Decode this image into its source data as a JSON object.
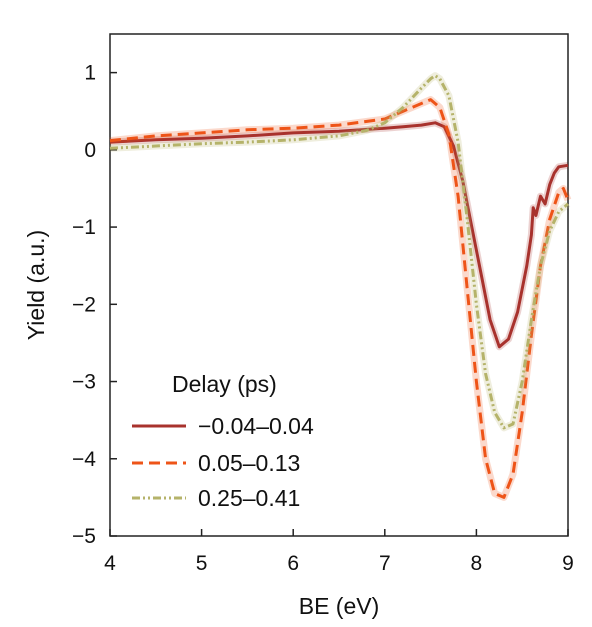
{
  "chart_data": {
    "type": "line",
    "title": "",
    "xlabel": "BE (eV)",
    "ylabel": "Yield (a.u.)",
    "xlim": [
      4,
      9
    ],
    "ylim": [
      -5,
      1.5
    ],
    "xticks": [
      "4",
      "5",
      "6",
      "7",
      "8",
      "9"
    ],
    "yticks": [
      "1",
      "0",
      "−1",
      "−2",
      "−3",
      "−4",
      "−5"
    ],
    "grid": false,
    "legend": {
      "title": "Delay (ps)",
      "placement": "bottom-left"
    },
    "series": [
      {
        "name": "−0.04–0.04",
        "color": "#a8322d",
        "style": "solid",
        "x": [
          4.0,
          4.5,
          5.0,
          5.5,
          6.0,
          6.5,
          7.0,
          7.2,
          7.4,
          7.55,
          7.65,
          7.75,
          7.85,
          7.95,
          8.05,
          8.15,
          8.25,
          8.35,
          8.45,
          8.55,
          8.6,
          8.62,
          8.65,
          8.7,
          8.75,
          8.8,
          8.85,
          8.9,
          9.0
        ],
        "y": [
          0.1,
          0.13,
          0.15,
          0.18,
          0.22,
          0.24,
          0.28,
          0.3,
          0.32,
          0.35,
          0.3,
          0.05,
          -0.4,
          -1.0,
          -1.6,
          -2.2,
          -2.55,
          -2.45,
          -2.1,
          -1.5,
          -1.1,
          -0.75,
          -0.85,
          -0.6,
          -0.7,
          -0.45,
          -0.3,
          -0.22,
          -0.2
        ]
      },
      {
        "name": "0.05–0.13",
        "color": "#ee5418",
        "style": "dashed",
        "x": [
          4.0,
          4.5,
          5.0,
          5.5,
          6.0,
          6.5,
          7.0,
          7.2,
          7.4,
          7.5,
          7.6,
          7.7,
          7.8,
          7.9,
          8.0,
          8.1,
          8.2,
          8.3,
          8.4,
          8.5,
          8.6,
          8.7,
          8.8,
          8.9,
          8.95,
          9.0
        ],
        "y": [
          0.12,
          0.18,
          0.22,
          0.26,
          0.28,
          0.32,
          0.4,
          0.5,
          0.6,
          0.65,
          0.55,
          0.2,
          -0.6,
          -1.8,
          -3.0,
          -4.0,
          -4.45,
          -4.5,
          -4.2,
          -3.4,
          -2.4,
          -1.5,
          -0.9,
          -0.55,
          -0.5,
          -0.65
        ]
      },
      {
        "name": "0.25–0.41",
        "color": "#b5b36a",
        "style": "dashdot",
        "x": [
          4.0,
          4.5,
          5.0,
          5.5,
          6.0,
          6.5,
          6.8,
          7.0,
          7.2,
          7.4,
          7.5,
          7.55,
          7.6,
          7.7,
          7.8,
          7.9,
          8.0,
          8.1,
          8.2,
          8.3,
          8.4,
          8.5,
          8.6,
          8.7,
          8.8,
          8.9,
          9.0
        ],
        "y": [
          0.02,
          0.05,
          0.08,
          0.1,
          0.13,
          0.18,
          0.25,
          0.35,
          0.55,
          0.8,
          0.92,
          0.96,
          0.92,
          0.7,
          0.1,
          -0.9,
          -2.0,
          -2.9,
          -3.4,
          -3.6,
          -3.55,
          -3.0,
          -2.2,
          -1.5,
          -1.05,
          -0.8,
          -0.7
        ]
      }
    ]
  }
}
